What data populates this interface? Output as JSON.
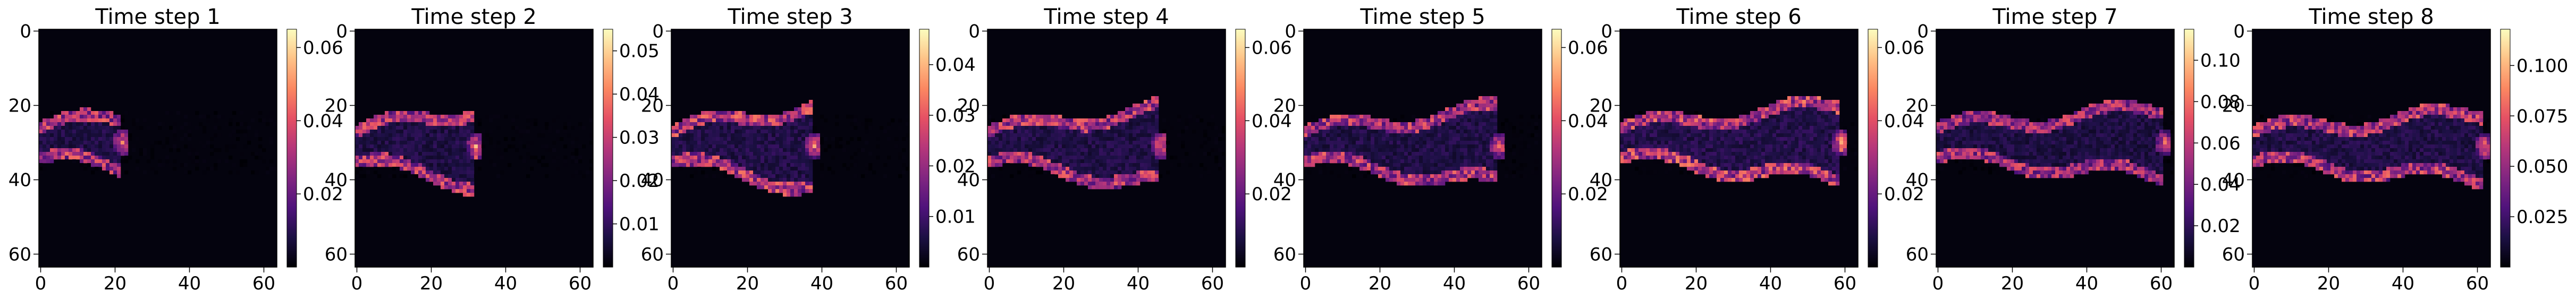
{
  "figure": {
    "background": "#ffffff",
    "colormap": "magma"
  },
  "chart_data": [
    {
      "type": "heatmap",
      "title": "Time step 1",
      "xlim": [
        0,
        63
      ],
      "ylim": [
        63,
        0
      ],
      "xticks": [
        "0",
        "20",
        "40",
        "60"
      ],
      "yticks": [
        "0",
        "20",
        "40",
        "60"
      ],
      "colorbar": {
        "ticks": [
          "0.02",
          "0.04",
          "0.06"
        ],
        "values": [
          0.02,
          0.04,
          0.06
        ],
        "min": 0.0,
        "max": 0.065
      },
      "plume": {
        "x_end": 22,
        "y_center": 30,
        "head_radius": 7,
        "peak_value": 0.06
      }
    },
    {
      "type": "heatmap",
      "title": "Time step 2",
      "xlim": [
        0,
        63
      ],
      "ylim": [
        63,
        0
      ],
      "xticks": [
        "0",
        "20",
        "40",
        "60"
      ],
      "yticks": [
        "0",
        "20",
        "40",
        "60"
      ],
      "colorbar": {
        "ticks": [
          "0.01",
          "0.02",
          "0.03",
          "0.04",
          "0.05"
        ],
        "values": [
          0.01,
          0.02,
          0.03,
          0.04,
          0.05
        ],
        "min": 0.0,
        "max": 0.055
      },
      "plume": {
        "x_end": 32,
        "y_center": 31,
        "head_radius": 10,
        "peak_value": 0.05
      }
    },
    {
      "type": "heatmap",
      "title": "Time step 3",
      "xlim": [
        0,
        63
      ],
      "ylim": [
        63,
        0
      ],
      "xticks": [
        "0",
        "20",
        "40",
        "60"
      ],
      "yticks": [
        "0",
        "20",
        "40",
        "60"
      ],
      "colorbar": {
        "ticks": [
          "0.01",
          "0.02",
          "0.03",
          "0.04"
        ],
        "values": [
          0.01,
          0.02,
          0.03,
          0.04
        ],
        "min": 0.0,
        "max": 0.047
      },
      "plume": {
        "x_end": 38,
        "y_center": 31,
        "head_radius": 11,
        "peak_value": 0.045
      }
    },
    {
      "type": "heatmap",
      "title": "Time step 4",
      "xlim": [
        0,
        63
      ],
      "ylim": [
        63,
        0
      ],
      "xticks": [
        "0",
        "20",
        "40",
        "60"
      ],
      "yticks": [
        "0",
        "20",
        "40",
        "60"
      ],
      "colorbar": {
        "ticks": [
          "0.02",
          "0.04",
          "0.06"
        ],
        "values": [
          0.02,
          0.04,
          0.06
        ],
        "min": 0.0,
        "max": 0.065
      },
      "plume": {
        "x_end": 46,
        "y_center": 31,
        "head_radius": 10,
        "peak_value": 0.06
      }
    },
    {
      "type": "heatmap",
      "title": "Time step 5",
      "xlim": [
        0,
        63
      ],
      "ylim": [
        63,
        0
      ],
      "xticks": [
        "0",
        "20",
        "40",
        "60"
      ],
      "yticks": [
        "0",
        "20",
        "40",
        "60"
      ],
      "colorbar": {
        "ticks": [
          "0.02",
          "0.04",
          "0.06"
        ],
        "values": [
          0.02,
          0.04,
          0.06
        ],
        "min": 0.0,
        "max": 0.065
      },
      "plume": {
        "x_end": 52,
        "y_center": 31,
        "head_radius": 10,
        "peak_value": 0.06
      }
    },
    {
      "type": "heatmap",
      "title": "Time step 6",
      "xlim": [
        0,
        63
      ],
      "ylim": [
        63,
        0
      ],
      "xticks": [
        "0",
        "20",
        "40",
        "60"
      ],
      "yticks": [
        "0",
        "20",
        "40",
        "60"
      ],
      "colorbar": {
        "ticks": [
          "0.02",
          "0.04",
          "0.06"
        ],
        "values": [
          0.02,
          0.04,
          0.06
        ],
        "min": 0.0,
        "max": 0.065
      },
      "plume": {
        "x_end": 59,
        "y_center": 30,
        "head_radius": 10,
        "peak_value": 0.065
      }
    },
    {
      "type": "heatmap",
      "title": "Time step 7",
      "xlim": [
        0,
        63
      ],
      "ylim": [
        63,
        0
      ],
      "xticks": [
        "0",
        "20",
        "40",
        "60"
      ],
      "yticks": [
        "0",
        "20",
        "40",
        "60"
      ],
      "colorbar": {
        "ticks": [
          "0.02",
          "0.04",
          "0.06",
          "0.08",
          "0.10"
        ],
        "values": [
          0.02,
          0.04,
          0.06,
          0.08,
          0.1
        ],
        "min": 0.0,
        "max": 0.115
      },
      "plume": {
        "x_end": 61,
        "y_center": 30,
        "head_radius": 9,
        "peak_value": 0.1
      }
    },
    {
      "type": "heatmap",
      "title": "Time step 8",
      "xlim": [
        0,
        63
      ],
      "ylim": [
        63,
        0
      ],
      "xticks": [
        "0",
        "20",
        "40",
        "60"
      ],
      "yticks": [
        "0",
        "20",
        "40",
        "60"
      ],
      "colorbar": {
        "ticks": [
          "0.025",
          "0.050",
          "0.075",
          "0.100"
        ],
        "values": [
          0.025,
          0.05,
          0.075,
          0.1
        ],
        "min": 0.0,
        "max": 0.118
      },
      "plume": {
        "x_end": 62,
        "y_center": 31,
        "head_radius": 9,
        "peak_value": 0.11
      }
    }
  ]
}
